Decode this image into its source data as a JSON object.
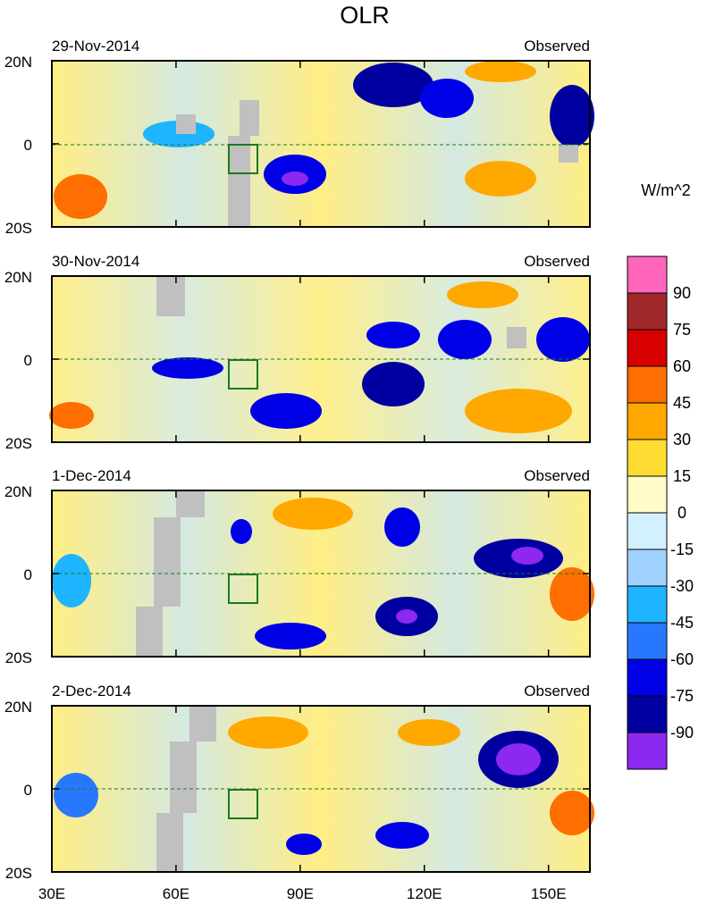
{
  "chart_data": {
    "type": "heatmap",
    "title": "OLR",
    "units_label": "W/m^2",
    "y_ticks": [
      "20N",
      "0",
      "20S"
    ],
    "x_ticks": [
      "30E",
      "60E",
      "90E",
      "120E",
      "150E"
    ],
    "lon_range": [
      30,
      160
    ],
    "lat_range": [
      -20,
      20
    ],
    "x_tick_values": [
      30,
      60,
      90,
      120,
      150
    ],
    "colorbar": {
      "labels": [
        "90",
        "75",
        "60",
        "45",
        "30",
        "15",
        "0",
        "-15",
        "-30",
        "-45",
        "-60",
        "-75",
        "-90"
      ],
      "colors": [
        "#ff66bb",
        "#a02828",
        "#d80000",
        "#ff6e00",
        "#ffa800",
        "#ffdc32",
        "#fffcc8",
        "#d2f0ff",
        "#a0d2ff",
        "#1eb4ff",
        "#2878ff",
        "#0000e6",
        "#0000a0",
        "#8c28f0"
      ]
    },
    "panels": [
      {
        "date": "29-Nov-2014",
        "label": "Observed"
      },
      {
        "date": "30-Nov-2014",
        "label": "Observed"
      },
      {
        "date": "1-Dec-2014",
        "label": "Observed"
      },
      {
        "date": "2-Dec-2014",
        "label": "Observed"
      }
    ]
  }
}
